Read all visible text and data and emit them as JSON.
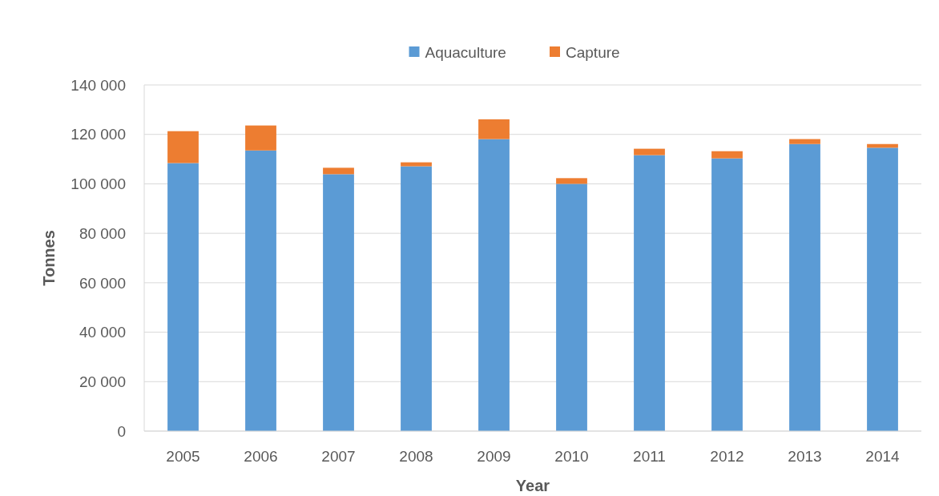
{
  "chart_data": {
    "type": "bar",
    "xlabel": "Year",
    "ylabel": "Tonnes",
    "categories": [
      "2005",
      "2006",
      "2007",
      "2008",
      "2009",
      "2010",
      "2011",
      "2012",
      "2013",
      "2014"
    ],
    "series": [
      {
        "name": "Aquaculture",
        "color": "#5b9bd5",
        "values": [
          108400,
          113500,
          103900,
          107100,
          118100,
          100000,
          111600,
          110300,
          116100,
          114600
        ]
      },
      {
        "name": "Capture",
        "color": "#ed7d31",
        "values": [
          12900,
          10100,
          2600,
          1600,
          8000,
          2300,
          2600,
          2900,
          2000,
          1500
        ]
      }
    ],
    "stacked": true,
    "ylim": [
      0,
      140000
    ],
    "yticks": [
      {
        "value": 0,
        "label": "0"
      },
      {
        "value": 20000,
        "label": "20 000"
      },
      {
        "value": 40000,
        "label": "40 000"
      },
      {
        "value": 60000,
        "label": "60 000"
      },
      {
        "value": 80000,
        "label": "80 000"
      },
      {
        "value": 100000,
        "label": "100 000"
      },
      {
        "value": 120000,
        "label": "120 000"
      },
      {
        "value": 140000,
        "label": "140 000"
      }
    ],
    "grid": "y",
    "legend": "top"
  }
}
